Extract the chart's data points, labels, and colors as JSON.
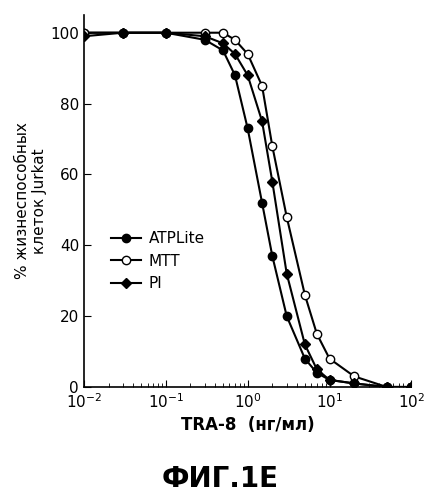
{
  "title": "ФИГ.1E",
  "xlabel": "TRA-8",
  "xlabel_units": "(нг/мл)",
  "ylabel": "% жизнеспособных\nклеток Jurkat",
  "xlim_log": [
    -2,
    2
  ],
  "ylim": [
    0,
    105
  ],
  "yticks": [
    0,
    20,
    40,
    60,
    80,
    100
  ],
  "series": {
    "ATPLite": {
      "x": [
        0.01,
        0.03,
        0.1,
        0.3,
        0.5,
        0.7,
        1.0,
        1.5,
        2.0,
        3.0,
        5.0,
        7.0,
        10.0,
        20.0,
        50.0,
        100.0
      ],
      "y": [
        100,
        100,
        100,
        98,
        95,
        88,
        73,
        52,
        37,
        20,
        8,
        4,
        2,
        1,
        0,
        0
      ],
      "marker": "o",
      "fillstyle": "full",
      "color": "black",
      "linewidth": 1.5
    },
    "MTT": {
      "x": [
        0.01,
        0.03,
        0.1,
        0.3,
        0.5,
        0.7,
        1.0,
        1.5,
        2.0,
        3.0,
        5.0,
        7.0,
        10.0,
        20.0,
        50.0,
        100.0
      ],
      "y": [
        100,
        100,
        100,
        100,
        100,
        98,
        94,
        85,
        68,
        48,
        26,
        15,
        8,
        3,
        0,
        0
      ],
      "marker": "o",
      "fillstyle": "none",
      "color": "black",
      "linewidth": 1.5
    },
    "PI": {
      "x": [
        0.01,
        0.03,
        0.1,
        0.3,
        0.5,
        0.7,
        1.0,
        1.5,
        2.0,
        3.0,
        5.0,
        7.0,
        10.0,
        20.0,
        50.0,
        100.0
      ],
      "y": [
        99,
        100,
        100,
        99,
        97,
        94,
        88,
        75,
        58,
        32,
        12,
        5,
        2,
        1,
        0,
        0
      ],
      "marker": "D",
      "fillstyle": "full",
      "color": "black",
      "linewidth": 1.5
    }
  },
  "legend_markers": {
    "ATPLite": {
      "marker": "o",
      "fillstyle": "full"
    },
    "MTT": {
      "marker": "o",
      "fillstyle": "none"
    },
    "PI": {
      "marker": "D",
      "fillstyle": "full"
    }
  },
  "background_color": "#ffffff",
  "title_fontsize": 20,
  "axis_label_fontsize": 12,
  "tick_fontsize": 11,
  "legend_fontsize": 11
}
